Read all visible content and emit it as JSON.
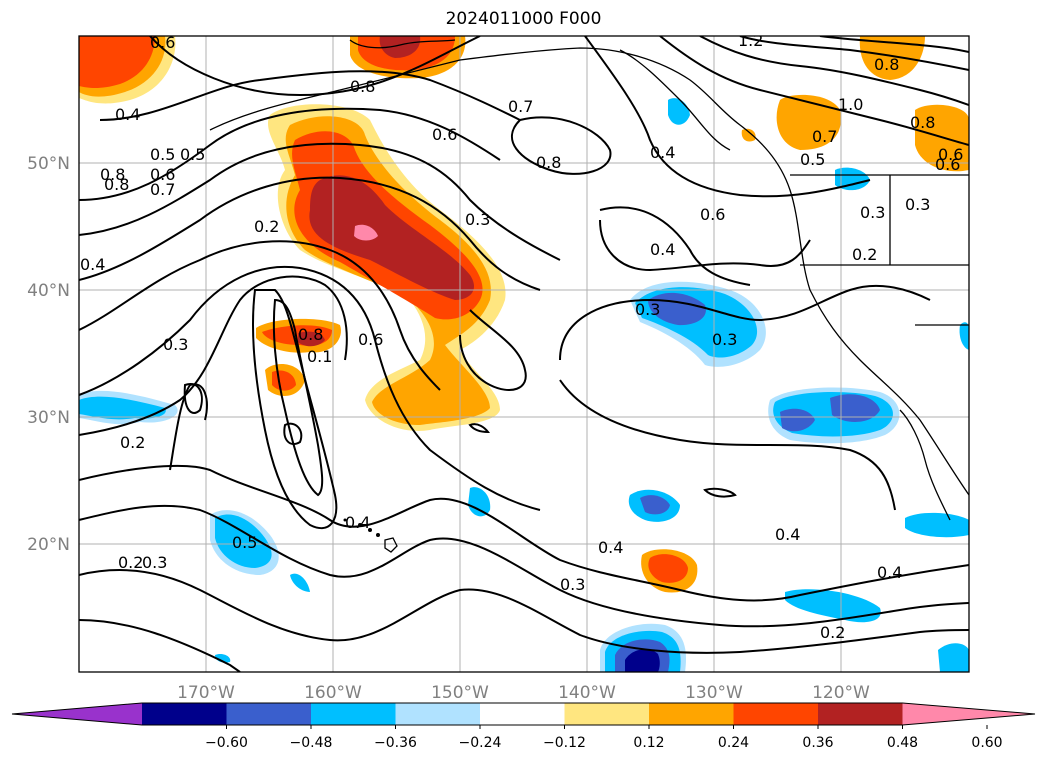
{
  "title": "2024011000 F000",
  "lon_labels": [
    "170°W",
    "160°W",
    "150°W",
    "140°W",
    "130°W",
    "120°W"
  ],
  "lat_labels": [
    "50°N",
    "40°N",
    "30°N",
    "20°N"
  ],
  "colorbar": {
    "colors": [
      "#9932cc",
      "#00008b",
      "#3a5fcd",
      "#00bfff",
      "#b0e2ff",
      "#ffffff",
      "#ffe680",
      "#ffa500",
      "#ff4500",
      "#b22222",
      "#ff88aa"
    ],
    "ticks": [
      "−0.60",
      "−0.48",
      "−0.36",
      "−0.24",
      "−0.12",
      "0.12",
      "0.24",
      "0.36",
      "0.48",
      "0.60"
    ]
  },
  "contour_labels": [
    "0.6",
    "0.4",
    "0.5",
    "0.5",
    "0.8",
    "0.7",
    "0.6",
    "0.8",
    "0.4",
    "0.8",
    "0.7",
    "0.6",
    "0.7",
    "0.8",
    "0.6",
    "1.0",
    "0.5",
    "0.8",
    "0.4",
    "0.6",
    "0.3",
    "0.2",
    "0.3",
    "0.2",
    "0.3",
    "0.4",
    "0.3",
    "0.3",
    "0.8",
    "0.6",
    "0.1",
    "0.3",
    "0.2",
    "0.5",
    "0.4",
    "0.2",
    "0.3",
    "0.4",
    "0.3",
    "0.4",
    "0.2",
    "0.4",
    "1.2",
    "0.8",
    "0.6"
  ]
}
